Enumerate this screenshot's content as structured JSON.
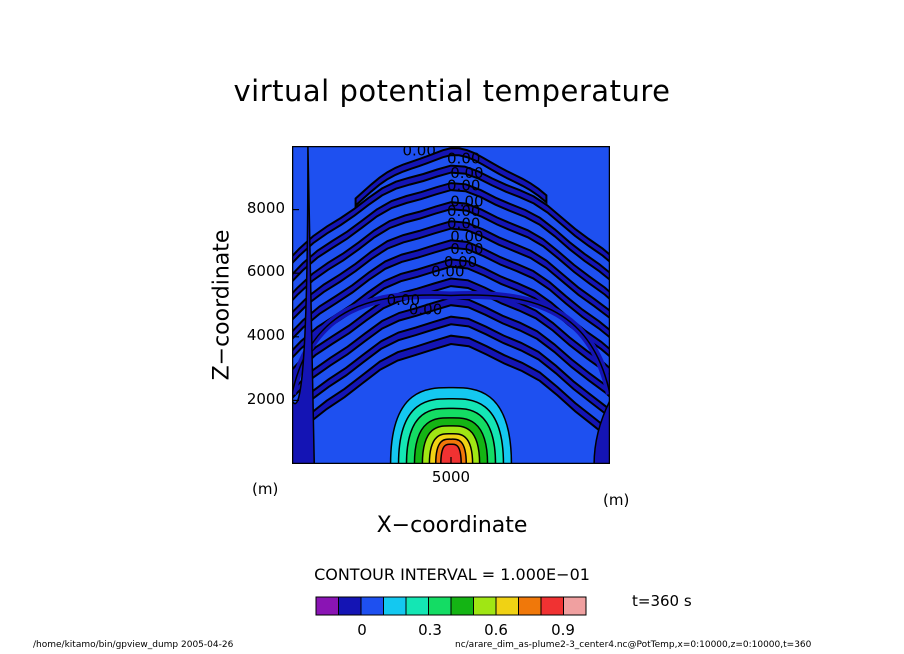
{
  "chart_data": {
    "type": "contour",
    "title": "virtual potential temperature",
    "xlabel": "X−coordinate",
    "ylabel": "Z−coordinate",
    "x_unit": "(m)",
    "y_unit": "(m)",
    "xlim": [
      0,
      10000
    ],
    "ylim": [
      0,
      10000
    ],
    "x_ticks": [
      "5000"
    ],
    "y_ticks": [
      "2000",
      "4000",
      "6000",
      "8000"
    ],
    "contour_interval": "CONTOUR INTERVAL = 1.000E−01",
    "contour_labels": [
      "0.00"
    ],
    "plume_center_x": 5000,
    "plume_peak": 1.0,
    "colorbar": {
      "tick_labels": [
        "0",
        "0.3",
        "0.6",
        "0.9"
      ],
      "colors": [
        "#8a14b4",
        "#1414b4",
        "#1e50f0",
        "#14c8f0",
        "#14e6b4",
        "#14dc64",
        "#14b414",
        "#a0e614",
        "#f0d214",
        "#f0780a",
        "#f03232",
        "#f0a0a0"
      ]
    },
    "time": "t=360 s"
  },
  "footer": {
    "left": "/home/kitamo/bin/gpview_dump   2005-04-26",
    "right": "nc/arare_dim_as-plume2-3_center4.nc@PotTemp,x=0:10000,z=0:10000,t=360"
  }
}
